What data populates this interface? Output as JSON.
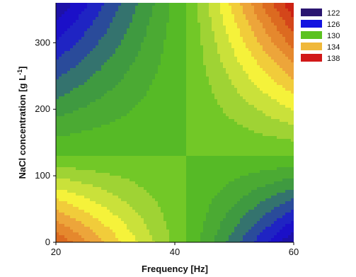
{
  "chart_data": {
    "type": "heatmap",
    "subtype": "filled-contour",
    "title": "",
    "xlabel": "Frequency [Hz]",
    "ylabel_main": "NaCl concentration [g L",
    "ylabel_sup": "-1",
    "ylabel_close": "]",
    "xlim": [
      20,
      60
    ],
    "ylim": [
      0,
      360
    ],
    "x_ticks": [
      20,
      40,
      60
    ],
    "y_ticks": [
      0,
      100,
      200,
      300
    ],
    "x_tick_labels": [
      "20",
      "40",
      "60"
    ],
    "y_tick_labels": [
      "0",
      "100",
      "200",
      "300"
    ],
    "saddle_point": {
      "x": 42,
      "y": 130
    },
    "z_range": [
      120,
      140
    ],
    "z_at_corners": {
      "x20_y0": 138,
      "x20_y360": 122,
      "x60_y0": 122,
      "x60_y360": 140
    },
    "legend": {
      "placement": "right",
      "entries": [
        {
          "label": "122",
          "color": "#2a1570"
        },
        {
          "label": "126",
          "color": "#1414e0"
        },
        {
          "label": "130",
          "color": "#5cc220"
        },
        {
          "label": "134",
          "color": "#f0b83a"
        },
        {
          "label": "138",
          "color": "#d11818"
        }
      ]
    },
    "colorscale": [
      {
        "z": 120,
        "color": "#221254"
      },
      {
        "z": 124,
        "color": "#1a10d8"
      },
      {
        "z": 126,
        "color": "#2f5f85"
      },
      {
        "z": 127.5,
        "color": "#3f9a40"
      },
      {
        "z": 130,
        "color": "#5cc220"
      },
      {
        "z": 132,
        "color": "#b5d83a"
      },
      {
        "z": 133.5,
        "color": "#f5f23a"
      },
      {
        "z": 135.5,
        "color": "#eda53a"
      },
      {
        "z": 137.5,
        "color": "#dc6a20"
      },
      {
        "z": 140,
        "color": "#c81010"
      }
    ]
  }
}
